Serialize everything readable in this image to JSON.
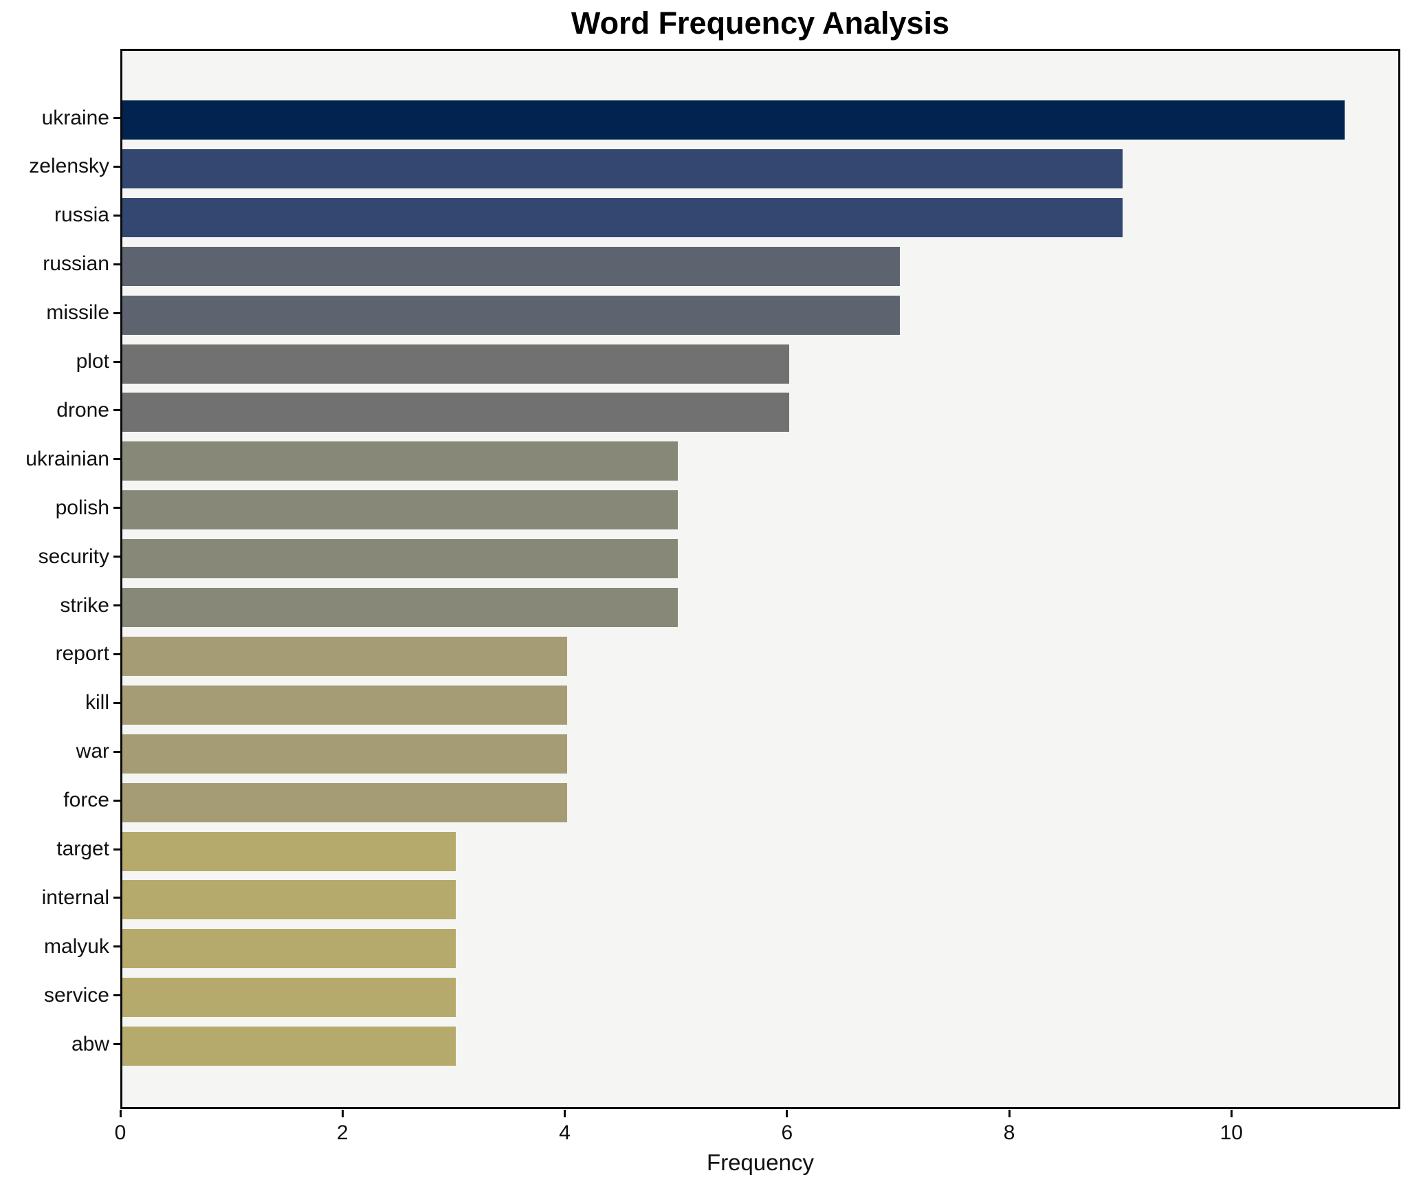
{
  "title": "Word Frequency Analysis",
  "x_axis_label": "Frequency",
  "colors": {
    "figure_background": "#ffffff",
    "plot_background": "#f5f5f3",
    "spine": "#0b0b0b",
    "text": "#111111"
  },
  "chart_data": {
    "type": "bar",
    "orientation": "horizontal",
    "title": "Word Frequency Analysis",
    "xlabel": "Frequency",
    "ylabel": "",
    "categories": [
      "ukraine",
      "zelensky",
      "russia",
      "russian",
      "missile",
      "plot",
      "drone",
      "ukrainian",
      "polish",
      "security",
      "strike",
      "report",
      "kill",
      "war",
      "force",
      "target",
      "internal",
      "malyuk",
      "service",
      "abw"
    ],
    "values": [
      11,
      9,
      9,
      7,
      7,
      6,
      6,
      5,
      5,
      5,
      5,
      4,
      4,
      4,
      4,
      3,
      3,
      3,
      3,
      3
    ],
    "bar_colors": [
      "#02234F",
      "#334771",
      "#334771",
      "#5E6370",
      "#5E6370",
      "#717171",
      "#717171",
      "#888878",
      "#888878",
      "#888878",
      "#888878",
      "#A59C76",
      "#A59C76",
      "#A59C76",
      "#A59C76",
      "#B5AA6B",
      "#B5AA6B",
      "#B5AA6B",
      "#B5AA6B",
      "#B5AA6B"
    ],
    "xlim": [
      0,
      11.52
    ],
    "x_ticks": [
      0,
      2,
      4,
      6,
      8,
      10
    ],
    "grid": false,
    "legend": null
  }
}
